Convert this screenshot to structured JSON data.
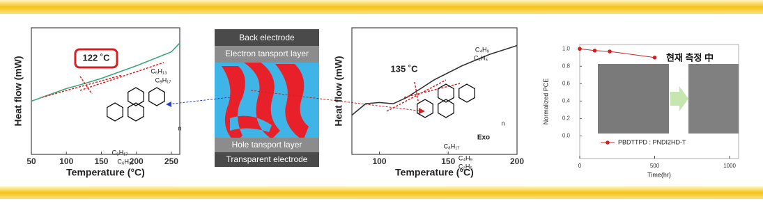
{
  "chart_data": [
    {
      "type": "line",
      "x_label": "Temperature (°C)",
      "y_label": "Heat flow (mW)",
      "xlim": [
        50,
        262
      ],
      "ylim": [
        0,
        10
      ],
      "xticks": [
        50,
        100,
        150,
        200,
        250
      ],
      "x": [
        50,
        100,
        120,
        150,
        200,
        250,
        262
      ],
      "series": [
        {
          "color": "#3aa67a",
          "values": [
            4.2,
            5.2,
            5.5,
            6.0,
            7.0,
            8.1,
            8.8
          ]
        }
      ],
      "annotations": [
        "122 ˚C"
      ],
      "structure_labels": [
        "C₆H₁₃",
        "C₈H₁₇",
        "n",
        "C₈H₁₇",
        "C₆H₁₃"
      ]
    },
    {
      "type": "line",
      "x_label": "Temperature (°C)",
      "y_label": "Heat flow (mW)",
      "xlim": [
        80,
        200
      ],
      "ylim": [
        0,
        10
      ],
      "xticks": [
        100,
        150,
        200
      ],
      "x": [
        80,
        90,
        100,
        110,
        120,
        140,
        160,
        180,
        200
      ],
      "series": [
        {
          "color": "#333333",
          "values": [
            3.1,
            4.0,
            4.1,
            4.0,
            4.5,
            5.9,
            7.0,
            7.9,
            8.6
          ]
        }
      ],
      "annotations": [
        "135 ˚C",
        "Exo"
      ],
      "structure_labels": [
        "C₄H₉",
        "C₂H₅",
        "n",
        "C₈H₁₇",
        "C₄H₉",
        "C₂H₅"
      ]
    },
    {
      "type": "line",
      "x_label": "Time(hr)",
      "y_label": "Normalized PCE",
      "xlim": [
        0,
        1060
      ],
      "ylim": [
        -0.26,
        1.05
      ],
      "xticks": [
        0,
        500,
        1000
      ],
      "yticks": [
        {
          "value": 0,
          "label": "0.0"
        },
        {
          "value": 0.2,
          "label": "0.2"
        },
        {
          "value": 0.4,
          "label": "0.4"
        },
        {
          "value": 0.6,
          "label": "0.6"
        },
        {
          "value": 0.8,
          "label": "0.8"
        },
        {
          "value": 1,
          "label": "1.0"
        }
      ],
      "x": [
        0,
        100,
        200,
        500
      ],
      "series": [
        {
          "name": "PBDTTPD : PNDI2HD-T",
          "color": "#cc2222",
          "values": [
            1.0,
            0.98,
            0.97,
            0.9
          ]
        }
      ],
      "markers": true,
      "annotations": [
        "현재 측정 中"
      ]
    }
  ],
  "diagram": {
    "layers": [
      "Back electrode",
      "Electron tansport layer",
      "Hole tansport layer",
      "Transparent electrode"
    ]
  }
}
